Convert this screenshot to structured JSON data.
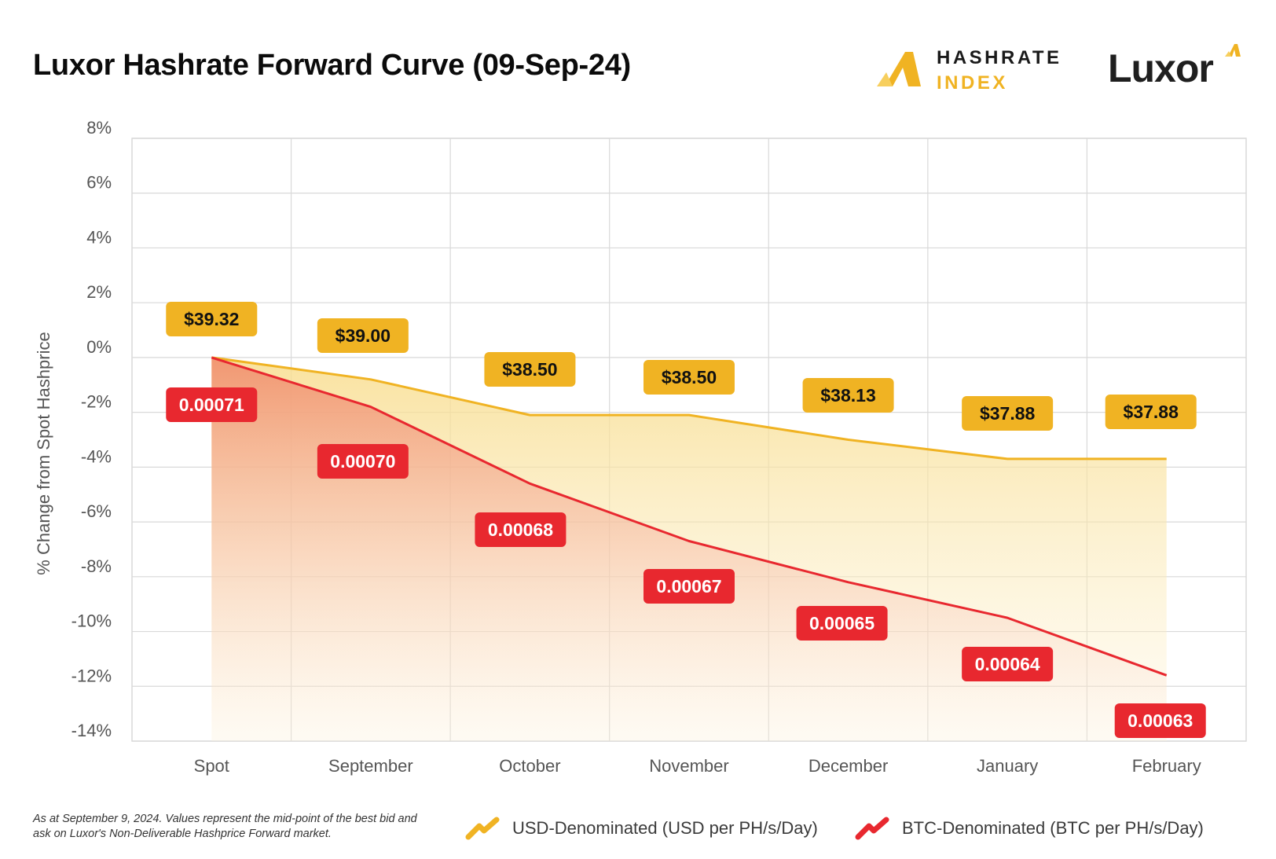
{
  "title": "Luxor Hashrate Forward Curve (09-Sep-24)",
  "logos": {
    "hashrate_index_line1": "HASHRATE",
    "hashrate_index_line2": "INDEX",
    "luxor": "Luxor"
  },
  "colors": {
    "usd": "#F0B323",
    "btc": "#E8282F",
    "usd_label_bg": "#F0B323",
    "btc_label_bg": "#E8282F",
    "grid": "#d9d9d9"
  },
  "chart_data": {
    "type": "line",
    "ylabel": "% Change from Spot Hashprice",
    "xlabel": "",
    "ylim": [
      -14,
      8
    ],
    "yticks": [
      8,
      6,
      4,
      2,
      0,
      -2,
      -4,
      -6,
      -8,
      -10,
      -12,
      -14
    ],
    "ytick_labels": [
      "8%",
      "6%",
      "4%",
      "2%",
      "0%",
      "-2%",
      "-4%",
      "-6%",
      "-8%",
      "-10%",
      "-12%",
      "-14%"
    ],
    "categories": [
      "Spot",
      "September",
      "October",
      "November",
      "December",
      "January",
      "February"
    ],
    "grid": true,
    "series": [
      {
        "name": "USD-Denominated (USD per PH/s/Day)",
        "key": "usd",
        "pct_change": [
          0,
          -0.8,
          -2.1,
          -2.1,
          -3.0,
          -3.7,
          -3.7
        ],
        "price_labels": [
          "$39.32",
          "$39.00",
          "$38.50",
          "$38.50",
          "$38.13",
          "$37.88",
          "$37.88"
        ]
      },
      {
        "name": "BTC-Denominated (BTC per PH/s/Day)",
        "key": "btc",
        "pct_change": [
          0,
          -1.8,
          -4.6,
          -6.7,
          -8.2,
          -9.5,
          -11.6
        ],
        "price_labels": [
          "0.00071",
          "0.00070",
          "0.00068",
          "0.00067",
          "0.00065",
          "0.00064",
          "0.00063"
        ]
      }
    ]
  },
  "footnote": "As at September 9, 2024. Values represent the mid-point of the best bid and ask on Luxor's Non-Deliverable Hashprice Forward market."
}
